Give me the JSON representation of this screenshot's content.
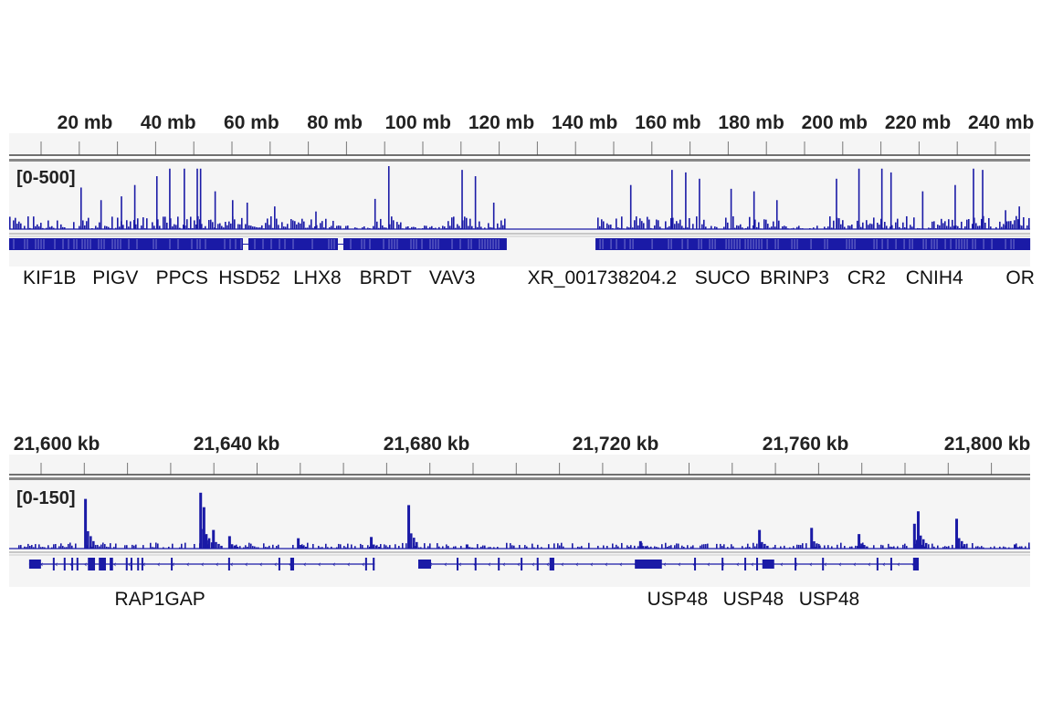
{
  "chart_data": [
    {
      "type": "bar",
      "unit": "mb",
      "range_label": "[0-500]",
      "ylim": [
        0,
        500
      ],
      "xlim": [
        1.8,
        247
      ],
      "ticks": [
        20,
        40,
        60,
        80,
        100,
        120,
        140,
        160,
        180,
        200,
        220,
        240
      ],
      "tick_labels": [
        "20 mb",
        "40 mb",
        "60 mb",
        "80 mb",
        "100 mb",
        "120 mb",
        "140 mb",
        "160 mb",
        "180 mb",
        "200 mb",
        "220 mb",
        "240 mb"
      ],
      "no_data_range": [
        121.3,
        142.6
      ],
      "peaks": [
        [
          18.9,
          330
        ],
        [
          23.7,
          230
        ],
        [
          28.6,
          260
        ],
        [
          31.8,
          350
        ],
        [
          37.1,
          420
        ],
        [
          40.2,
          480
        ],
        [
          43.7,
          480
        ],
        [
          46.8,
          480
        ],
        [
          47.6,
          480
        ],
        [
          51.1,
          300
        ],
        [
          55.3,
          230
        ],
        [
          58.8,
          210
        ],
        [
          65.4,
          180
        ],
        [
          75.3,
          140
        ],
        [
          89.5,
          240
        ],
        [
          92.8,
          500
        ],
        [
          110.4,
          470
        ],
        [
          113.6,
          420
        ],
        [
          118,
          210
        ],
        [
          150.9,
          350
        ],
        [
          160.8,
          470
        ],
        [
          164.1,
          450
        ],
        [
          167.4,
          400
        ],
        [
          175,
          320
        ],
        [
          180.5,
          300
        ],
        [
          186,
          230
        ],
        [
          200.3,
          400
        ],
        [
          205.7,
          480
        ],
        [
          211.2,
          480
        ],
        [
          213.4,
          450
        ],
        [
          221,
          300
        ],
        [
          228.8,
          350
        ],
        [
          233.2,
          480
        ],
        [
          235.4,
          470
        ],
        [
          240.9,
          150
        ],
        [
          244.2,
          180
        ]
      ],
      "genes": [
        {
          "name": "KIF1B",
          "pos": 11.5
        },
        {
          "name": "PIGV",
          "pos": 27.3
        },
        {
          "name": "PPCS",
          "pos": 43.3
        },
        {
          "name": "HSD52",
          "pos": 59.5
        },
        {
          "name": "LHX8",
          "pos": 75.8
        },
        {
          "name": "BRDT",
          "pos": 92.2
        },
        {
          "name": "VAV3",
          "pos": 108.2
        },
        {
          "name": "XR_001738204.2",
          "pos": 144.2
        },
        {
          "name": "SUCO",
          "pos": 173.1
        },
        {
          "name": "BRINP3",
          "pos": 190.4
        },
        {
          "name": "CR2",
          "pos": 207.7
        },
        {
          "name": "CNIH4",
          "pos": 224
        },
        {
          "name": "OR",
          "pos": 244.6
        }
      ],
      "gene_blocks": [
        [
          1.8,
          121.3
        ],
        [
          142.6,
          247
        ]
      ]
    },
    {
      "type": "bar",
      "unit": "kb",
      "range_label": "[0-150]",
      "ylim": [
        0,
        150
      ],
      "xlim": [
        21590.4,
        21805.8
      ],
      "ticks": [
        21600,
        21640,
        21680,
        21720,
        21760,
        21800
      ],
      "tick_labels": [
        "21,600 kb",
        "21,640 kb",
        "21,680 kb",
        "21,720 kb",
        "21,760 kb",
        "21,800 kb"
      ],
      "peaks": [
        [
          21605.8,
          120
        ],
        [
          21630.1,
          135
        ],
        [
          21630.8,
          100
        ],
        [
          21632.8,
          45
        ],
        [
          21636.2,
          30
        ],
        [
          21650.7,
          25
        ],
        [
          21666.1,
          28
        ],
        [
          21674,
          105
        ],
        [
          21686.3,
          10
        ],
        [
          21722.9,
          18
        ],
        [
          21748,
          45
        ],
        [
          21759,
          50
        ],
        [
          21769,
          35
        ],
        [
          21780.7,
          60
        ],
        [
          21781.5,
          90
        ],
        [
          21789.6,
          72
        ],
        [
          21802,
          10
        ]
      ],
      "genes": [
        {
          "name": "RAP1GAP",
          "label_pos": 21621.8,
          "start": 21594.2,
          "end": 21667.1,
          "exons": [
            [
              21594.2,
              21596.7
            ],
            [
              21599.2,
              21599.5
            ],
            [
              21601.5,
              21601.8
            ],
            [
              21603.1,
              21603.4
            ],
            [
              21604.2,
              21604.5
            ],
            [
              21606.6,
              21608.1
            ],
            [
              21608.9,
              21610.4
            ],
            [
              21611.2,
              21611.9
            ],
            [
              21614.6,
              21614.9
            ],
            [
              21615.6,
              21615.9
            ],
            [
              21617,
              21617.3
            ],
            [
              21617.9,
              21618.2
            ],
            [
              21624.1,
              21624.4
            ],
            [
              21636.2,
              21636.5
            ],
            [
              21646.8,
              21647.1
            ],
            [
              21649.3,
              21650.1
            ],
            [
              21665.1,
              21665.4
            ],
            [
              21666.7,
              21667.1
            ]
          ]
        },
        {
          "name": "USP48",
          "label_pos": 21731,
          "start": 21676.3,
          "end": 21781.9,
          "exons": [
            [
              21676.3,
              21679
            ],
            [
              21684.4,
              21684.7
            ],
            [
              21688.2,
              21688.5
            ],
            [
              21693.1,
              21693.4
            ],
            [
              21697.9,
              21698.2
            ],
            [
              21701.3,
              21701.6
            ],
            [
              21704,
              21705
            ],
            [
              21722,
              21727.7
            ],
            [
              21734.5,
              21734.8
            ],
            [
              21740.3,
              21740.6
            ],
            [
              21745.1,
              21745.4
            ],
            [
              21747.6,
              21747.9
            ],
            [
              21748.9,
              21751.4
            ],
            [
              21755.7,
              21756
            ],
            [
              21761.5,
              21761.8
            ],
            [
              21773,
              21773.3
            ],
            [
              21775.9,
              21776.2
            ],
            [
              21780.7,
              21781.9
            ]
          ]
        },
        {
          "name": "USP48",
          "label_pos": 21747
        },
        {
          "name": "USP48",
          "label_pos": 21763
        }
      ]
    }
  ],
  "colors": {
    "signal": "#1a1aa6",
    "axis": "#555555",
    "panel_bg": "#f5f5f5"
  }
}
